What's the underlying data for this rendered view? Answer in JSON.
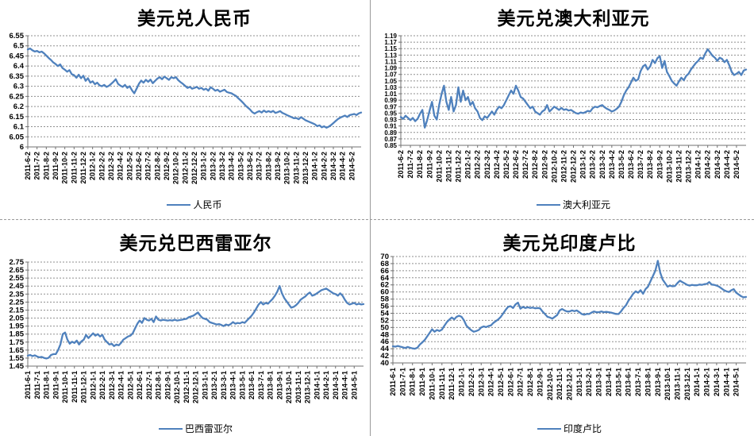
{
  "colors": {
    "series_line": "#4f81bd",
    "gridline": "#8f8f8f",
    "axis": "#707070",
    "text": "#000000",
    "divider": "#9a9a9a",
    "background": "#ffffff"
  },
  "chart_data": [
    {
      "type": "line",
      "title": "美元兑人民币",
      "legend": "人民币",
      "ylim": [
        6.0,
        6.55
      ],
      "grid": true,
      "legend_position": "bottom",
      "y_ticks": [
        "6.55",
        "6.5",
        "6.45",
        "6.4",
        "6.35",
        "6.3",
        "6.25",
        "6.2",
        "6.15",
        "6.1",
        "6.05",
        "6"
      ],
      "x_labels": [
        "2011-6-2",
        "2011-7-2",
        "2011-8-2",
        "2011-9-2",
        "2011-10-2",
        "2011-11-2",
        "2011-12-2",
        "2012-1-2",
        "2012-2-2",
        "2012-3-2",
        "2012-4-2",
        "2012-5-2",
        "2012-6-2",
        "2012-7-2",
        "2012-8-2",
        "2012-9-2",
        "2012-10-2",
        "2012-11-2",
        "2012-12-2",
        "2013-1-2",
        "2013-2-2",
        "2013-3-2",
        "2013-4-2",
        "2013-5-2",
        "2013-6-2",
        "2013-7-2",
        "2013-8-2",
        "2013-9-2",
        "2013-10-2",
        "2013-11-2",
        "2013-12-2",
        "2014-1-2",
        "2014-2-2",
        "2014-3-2",
        "2014-4-2",
        "2014-5-2"
      ],
      "values": [
        6.482,
        6.487,
        6.478,
        6.472,
        6.475,
        6.468,
        6.472,
        6.463,
        6.452,
        6.44,
        6.43,
        6.418,
        6.41,
        6.4,
        6.408,
        6.39,
        6.382,
        6.372,
        6.38,
        6.36,
        6.355,
        6.342,
        6.357,
        6.34,
        6.352,
        6.327,
        6.34,
        6.318,
        6.325,
        6.31,
        6.318,
        6.305,
        6.3,
        6.307,
        6.297,
        6.302,
        6.312,
        6.322,
        6.335,
        6.312,
        6.303,
        6.297,
        6.307,
        6.292,
        6.3,
        6.28,
        6.265,
        6.288,
        6.312,
        6.328,
        6.318,
        6.332,
        6.322,
        6.333,
        6.315,
        6.327,
        6.338,
        6.345,
        6.335,
        6.348,
        6.34,
        6.332,
        6.345,
        6.34,
        6.345,
        6.33,
        6.32,
        6.312,
        6.302,
        6.292,
        6.297,
        6.288,
        6.292,
        6.297,
        6.288,
        6.292,
        6.283,
        6.288,
        6.278,
        6.295,
        6.288,
        6.278,
        6.283,
        6.273,
        6.278,
        6.283,
        6.272,
        6.268,
        6.265,
        6.258,
        6.252,
        6.24,
        6.23,
        6.218,
        6.205,
        6.195,
        6.185,
        6.172,
        6.165,
        6.172,
        6.177,
        6.17,
        6.18,
        6.172,
        6.177,
        6.172,
        6.178,
        6.168,
        6.172,
        6.177,
        6.168,
        6.163,
        6.157,
        6.152,
        6.147,
        6.142,
        6.143,
        6.137,
        6.147,
        6.14,
        6.132,
        6.127,
        6.122,
        6.117,
        6.112,
        6.103,
        6.107,
        6.097,
        6.102,
        6.095,
        6.1,
        6.108,
        6.118,
        6.128,
        6.138,
        6.145,
        6.15,
        6.155,
        6.148,
        6.157,
        6.16,
        6.163,
        6.158,
        6.166,
        6.17
      ]
    },
    {
      "type": "line",
      "title": "美元兑澳大利亚元",
      "legend": "澳大利亚元",
      "ylim": [
        0.85,
        1.19
      ],
      "grid": true,
      "legend_position": "bottom",
      "y_ticks": [
        "1.19",
        "1.17",
        "1.15",
        "1.13",
        "1.11",
        "1.09",
        "1.07",
        "1.05",
        "1.03",
        "1.01",
        "0.99",
        "0.97",
        "0.95",
        "0.93",
        "0.91",
        "0.89",
        "0.87",
        "0.85"
      ],
      "x_labels": [
        "2011-6-2",
        "2011-7-2",
        "2011-8-2",
        "2011-9-2",
        "2011-10-2",
        "2011-11-2",
        "2011-12-2",
        "2012-1-2",
        "2012-2-2",
        "2012-3-2",
        "2012-4-2",
        "2012-5-2",
        "2012-6-2",
        "2012-7-2",
        "2012-8-2",
        "2012-9-2",
        "2012-10-2",
        "2012-11-2",
        "2012-12-2",
        "2013-1-2",
        "2013-2-2",
        "2013-3-2",
        "2013-4-2",
        "2013-5-2",
        "2013-6-2",
        "2013-7-2",
        "2013-8-2",
        "2013-9-2",
        "2013-10-2",
        "2013-11-2",
        "2013-12-2",
        "2014-1-2",
        "2014-2-2",
        "2014-3-2",
        "2014-4-2",
        "2014-5-2"
      ],
      "values": [
        0.938,
        0.932,
        0.942,
        0.935,
        0.928,
        0.935,
        0.925,
        0.932,
        0.948,
        0.96,
        0.905,
        0.928,
        0.958,
        0.985,
        0.942,
        0.93,
        0.975,
        1.01,
        1.035,
        0.985,
        0.96,
        1.0,
        0.955,
        0.975,
        1.03,
        0.985,
        1.02,
        0.99,
        1.0,
        0.975,
        0.985,
        0.965,
        0.955,
        0.935,
        0.928,
        0.94,
        0.935,
        0.945,
        0.955,
        0.945,
        0.96,
        0.97,
        0.965,
        0.975,
        0.99,
        1.005,
        1.02,
        1.01,
        1.035,
        1.02,
        1.0,
        0.995,
        0.985,
        0.975,
        0.965,
        0.97,
        0.955,
        0.95,
        0.945,
        0.955,
        0.96,
        0.975,
        0.955,
        0.962,
        0.97,
        0.965,
        0.96,
        0.966,
        0.96,
        0.962,
        0.958,
        0.96,
        0.955,
        0.95,
        0.948,
        0.952,
        0.95,
        0.953,
        0.957,
        0.955,
        0.965,
        0.97,
        0.968,
        0.972,
        0.975,
        0.968,
        0.963,
        0.96,
        0.955,
        0.958,
        0.963,
        0.97,
        0.985,
        1.005,
        1.02,
        1.03,
        1.045,
        1.06,
        1.05,
        1.055,
        1.08,
        1.095,
        1.1,
        1.085,
        1.095,
        1.115,
        1.105,
        1.12,
        1.127,
        1.09,
        1.112,
        1.078,
        1.065,
        1.05,
        1.042,
        1.035,
        1.048,
        1.06,
        1.052,
        1.065,
        1.072,
        1.085,
        1.095,
        1.105,
        1.112,
        1.122,
        1.118,
        1.135,
        1.148,
        1.138,
        1.128,
        1.122,
        1.112,
        1.122,
        1.118,
        1.108,
        1.115,
        1.098,
        1.078,
        1.068,
        1.072,
        1.078,
        1.068,
        1.082,
        1.085
      ]
    },
    {
      "type": "line",
      "title": "美元兑巴西雷亚尔",
      "legend": "巴西雷亚尔",
      "ylim": [
        1.45,
        2.75
      ],
      "grid": true,
      "legend_position": "bottom",
      "y_ticks": [
        "2.75",
        "2.65",
        "2.55",
        "2.45",
        "2.35",
        "2.25",
        "2.15",
        "2.05",
        "1.95",
        "1.85",
        "1.75",
        "1.65",
        "1.55",
        "1.45"
      ],
      "x_labels": [
        "2011-6-1",
        "2011-7-1",
        "2011-8-1",
        "2011-9-1",
        "2011-10-1",
        "2011-11-1",
        "2011-12-1",
        "2012-1-1",
        "2012-2-1",
        "2012-3-1",
        "2012-4-1",
        "2012-5-1",
        "2012-6-1",
        "2012-7-1",
        "2012-8-1",
        "2012-9-1",
        "2012-10-1",
        "2012-11-1",
        "2012-12-1",
        "2013-1-1",
        "2013-2-1",
        "2013-3-1",
        "2013-4-1",
        "2013-5-1",
        "2013-6-1",
        "2013-7-1",
        "2013-8-1",
        "2013-9-1",
        "2013-10-1",
        "2013-11-1",
        "2013-12-1",
        "2014-1-1",
        "2014-2-1",
        "2014-3-1",
        "2014-4-1",
        "2014-5-1"
      ],
      "values": [
        1.58,
        1.59,
        1.575,
        1.585,
        1.57,
        1.56,
        1.565,
        1.552,
        1.545,
        1.555,
        1.59,
        1.6,
        1.6,
        1.65,
        1.72,
        1.85,
        1.87,
        1.78,
        1.73,
        1.755,
        1.74,
        1.77,
        1.72,
        1.76,
        1.78,
        1.84,
        1.8,
        1.83,
        1.86,
        1.83,
        1.85,
        1.82,
        1.84,
        1.78,
        1.75,
        1.72,
        1.73,
        1.7,
        1.72,
        1.71,
        1.74,
        1.78,
        1.8,
        1.82,
        1.83,
        1.86,
        1.92,
        1.98,
        2.02,
        1.99,
        2.05,
        2.03,
        2.02,
        2.04,
        2.0,
        2.07,
        2.03,
        2.02,
        2.03,
        2.025,
        2.02,
        2.025,
        2.02,
        2.03,
        2.02,
        2.025,
        2.03,
        2.035,
        2.04,
        2.06,
        2.07,
        2.08,
        2.1,
        2.12,
        2.08,
        2.05,
        2.04,
        2.03,
        2.0,
        1.99,
        1.98,
        1.97,
        1.975,
        1.965,
        1.95,
        1.97,
        1.96,
        1.975,
        2.0,
        1.98,
        1.99,
        1.985,
        2.0,
        1.99,
        2.02,
        2.05,
        2.08,
        2.12,
        2.17,
        2.22,
        2.25,
        2.22,
        2.24,
        2.23,
        2.26,
        2.29,
        2.33,
        2.38,
        2.45,
        2.36,
        2.3,
        2.26,
        2.22,
        2.18,
        2.19,
        2.21,
        2.24,
        2.28,
        2.3,
        2.32,
        2.35,
        2.37,
        2.33,
        2.34,
        2.36,
        2.38,
        2.4,
        2.41,
        2.42,
        2.4,
        2.38,
        2.36,
        2.35,
        2.33,
        2.36,
        2.33,
        2.28,
        2.24,
        2.22,
        2.23,
        2.24,
        2.22,
        2.23,
        2.22,
        2.225
      ]
    },
    {
      "type": "line",
      "title": "美元兑印度卢比",
      "legend": "印度卢比",
      "ylim": [
        40,
        70
      ],
      "grid": true,
      "legend_position": "bottom",
      "y_ticks": [
        "70",
        "68",
        "66",
        "64",
        "62",
        "60",
        "58",
        "56",
        "54",
        "52",
        "50",
        "48",
        "46",
        "44",
        "42",
        "40"
      ],
      "x_labels": [
        "2011-6-1",
        "2011-7-1",
        "2011-8-1",
        "2011-9-1",
        "2011-10-1",
        "2011-11-1",
        "2011-12-1",
        "2012-1-1",
        "2012-2-1",
        "2012-3-1",
        "2012-4-1",
        "2012-5-1",
        "2012-6-1",
        "2012-7-1",
        "2012-8-1",
        "2012-9-1",
        "2012-10-1",
        "2012-11-1",
        "2012-12-1",
        "2013-1-1",
        "2013-2-1",
        "2013-3-1",
        "2013-4-1",
        "2013-5-1",
        "2013-6-1",
        "2013-7-1",
        "2013-8-1",
        "2013-9-1",
        "2013-10-1",
        "2013-11-1",
        "2013-12-1",
        "2014-1-1",
        "2014-2-1",
        "2014-3-1",
        "2014-4-1",
        "2014-5-1"
      ],
      "values": [
        44.7,
        44.6,
        44.8,
        44.6,
        44.4,
        44.2,
        44.5,
        44.3,
        44.1,
        44.0,
        44.3,
        45.2,
        45.8,
        46.5,
        47.5,
        48.5,
        49.5,
        48.8,
        49.3,
        49.0,
        49.4,
        50.5,
        51.5,
        52.2,
        52.8,
        52.3,
        53.0,
        53.3,
        53.0,
        52.0,
        50.5,
        49.8,
        49.2,
        48.8,
        49.0,
        49.3,
        50.0,
        50.3,
        50.1,
        50.4,
        50.6,
        51.3,
        51.8,
        52.3,
        53.0,
        54.0,
        55.0,
        55.8,
        56.0,
        55.5,
        56.5,
        57.0,
        55.3,
        55.8,
        55.5,
        55.7,
        55.5,
        55.6,
        55.4,
        55.5,
        55.4,
        54.5,
        53.8,
        53.0,
        52.8,
        52.5,
        53.0,
        53.5,
        54.8,
        55.2,
        54.8,
        54.5,
        54.5,
        54.8,
        54.6,
        54.8,
        54.3,
        53.8,
        53.6,
        53.8,
        53.8,
        54.2,
        54.5,
        54.3,
        54.3,
        54.5,
        54.3,
        54.4,
        54.3,
        54.2,
        54.0,
        53.8,
        53.8,
        54.5,
        55.5,
        56.2,
        57.5,
        58.5,
        59.5,
        60.2,
        59.8,
        60.5,
        59.5,
        60.8,
        61.5,
        63.0,
        64.5,
        66.0,
        68.8,
        65.5,
        63.5,
        62.5,
        61.5,
        61.8,
        61.6,
        61.7,
        62.5,
        63.2,
        62.8,
        62.4,
        62.0,
        61.8,
        62.0,
        61.9,
        61.9,
        62.1,
        62.0,
        62.2,
        62.3,
        62.8,
        62.1,
        62.0,
        61.8,
        61.5,
        61.0,
        60.5,
        60.2,
        60.0,
        60.5,
        60.8,
        59.8,
        59.3,
        58.8,
        58.5,
        58.6
      ]
    }
  ]
}
